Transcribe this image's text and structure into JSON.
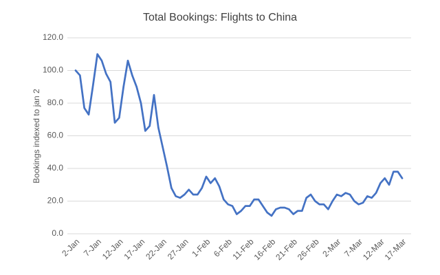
{
  "chart_data": {
    "type": "line",
    "title": "Total Bookings: Flights to China",
    "y_label": "Bookings indexed to jan 2",
    "categories": [
      "2-Jan",
      null,
      null,
      null,
      null,
      "7-Jan",
      null,
      null,
      null,
      null,
      "12-Jan",
      null,
      null,
      null,
      null,
      "17-Jan",
      null,
      null,
      null,
      null,
      "22-Jan",
      null,
      null,
      null,
      null,
      "27-Jan",
      null,
      null,
      null,
      null,
      "1-Feb",
      null,
      null,
      null,
      null,
      "6-Feb",
      null,
      null,
      null,
      null,
      "11-Feb",
      null,
      null,
      null,
      null,
      "16-Feb",
      null,
      null,
      null,
      null,
      "21-Feb",
      null,
      null,
      null,
      null,
      "26-Feb",
      null,
      null,
      null,
      null,
      "2-Mar",
      null,
      null,
      null,
      null,
      "7-Mar",
      null,
      null,
      null,
      null,
      "12-Mar",
      null,
      null,
      null,
      null,
      "17-Mar"
    ],
    "values": [
      100,
      97,
      77,
      73,
      91,
      110,
      106,
      98,
      93,
      68,
      71,
      90,
      106,
      97,
      90,
      80,
      63,
      66,
      85,
      65,
      53,
      41,
      28,
      23,
      22,
      24,
      27,
      24,
      24,
      28,
      35,
      31,
      34,
      29,
      21,
      18,
      17,
      12,
      14,
      17,
      17,
      21,
      21,
      17,
      13,
      11,
      15,
      16,
      16,
      15,
      12,
      14,
      14,
      22,
      24,
      20,
      18,
      18,
      15,
      20,
      24,
      23,
      25,
      24,
      20,
      18,
      19,
      23,
      22,
      25,
      31,
      34,
      30,
      38,
      38,
      34
    ],
    "color": "#4472c4",
    "ylim": [
      0,
      120
    ],
    "yticks": [
      {
        "value": 0,
        "label": "0.0"
      },
      {
        "value": 20,
        "label": "20.0"
      },
      {
        "value": 40,
        "label": "40.0"
      },
      {
        "value": 60,
        "label": "60.0"
      },
      {
        "value": 80,
        "label": "80.0"
      },
      {
        "value": 100,
        "label": "100.0"
      },
      {
        "value": 120,
        "label": "120.0"
      }
    ],
    "grid": true
  }
}
